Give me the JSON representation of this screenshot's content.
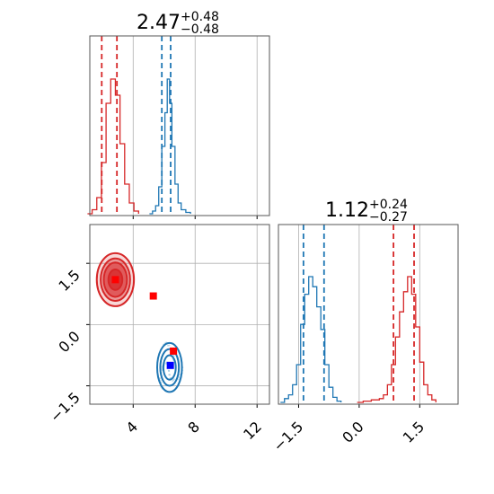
{
  "chart_data": [
    {
      "panel": "top-left",
      "type": "histogram",
      "title": {
        "value": "2.47",
        "plus": "+0.48",
        "minus": "−0.48"
      },
      "xlim": [
        1.2,
        12.8
      ],
      "xticks": [
        4,
        8,
        12
      ],
      "grid": true,
      "series": [
        {
          "color": "#d62728",
          "bins": [
            [
              1.05,
              0
            ],
            [
              1.35,
              3
            ],
            [
              1.65,
              12
            ],
            [
              1.95,
              38
            ],
            [
              2.25,
              82
            ],
            [
              2.55,
              100
            ],
            [
              2.85,
              88
            ],
            [
              3.15,
              52
            ],
            [
              3.45,
              22
            ],
            [
              3.75,
              8
            ],
            [
              4.05,
              2
            ],
            [
              4.35,
              0
            ]
          ],
          "quantile_lines": [
            1.97,
            2.95
          ]
        },
        {
          "color": "#1f77b4",
          "bins": [
            [
              5.05,
              0
            ],
            [
              5.25,
              2
            ],
            [
              5.45,
              6
            ],
            [
              5.65,
              20
            ],
            [
              5.85,
              50
            ],
            [
              6.05,
              75
            ],
            [
              6.2,
              100
            ],
            [
              6.35,
              82
            ],
            [
              6.5,
              50
            ],
            [
              6.7,
              22
            ],
            [
              6.9,
              8
            ],
            [
              7.1,
              3
            ],
            [
              7.4,
              1
            ],
            [
              7.7,
              0
            ]
          ],
          "quantile_lines": [
            5.85,
            6.42
          ]
        }
      ]
    },
    {
      "panel": "bottom-left",
      "type": "scatter",
      "xlim": [
        1.2,
        12.8
      ],
      "ylim": [
        -1.95,
        2.45
      ],
      "xticks": [
        "4",
        "8",
        "12"
      ],
      "yticks": [
        "1.5",
        "0.0",
        "−1.5"
      ],
      "ytick_values": [
        1.5,
        0.0,
        -1.5
      ],
      "grid": true,
      "markers": [
        {
          "x": 2.85,
          "y": 1.1,
          "color": "#ff0000"
        },
        {
          "x": 5.3,
          "y": 0.7,
          "color": "#ff0000"
        },
        {
          "x": 6.6,
          "y": -0.65,
          "color": "#ff0000"
        },
        {
          "x": 6.4,
          "y": -1.0,
          "color": "#0000ff"
        }
      ],
      "contours": [
        {
          "color": "#d62728",
          "cx": 2.85,
          "cy": 1.1,
          "rx": [
            1.2,
            0.95,
            0.75,
            0.45
          ],
          "ry": [
            0.65,
            0.52,
            0.42,
            0.25
          ],
          "filled": true
        },
        {
          "color": "#1f77b4",
          "cx": 6.35,
          "cy": -1.05,
          "rx": [
            0.8,
            0.6,
            0.4
          ],
          "ry": [
            0.6,
            0.45,
            0.3
          ],
          "filled": false
        }
      ]
    },
    {
      "panel": "bottom-right",
      "type": "histogram",
      "title": {
        "value": "1.12",
        "plus": "+0.24",
        "minus": "−0.27"
      },
      "xlim": [
        -2.0,
        2.45
      ],
      "xticks": [
        "−1.5",
        "0.0",
        "1.5"
      ],
      "xtick_values": [
        -1.5,
        0.0,
        1.5
      ],
      "grid": true,
      "series": [
        {
          "color": "#1f77b4",
          "bins": [
            [
              -1.95,
              0
            ],
            [
              -1.85,
              3
            ],
            [
              -1.75,
              6
            ],
            [
              -1.65,
              14
            ],
            [
              -1.55,
              30
            ],
            [
              -1.45,
              62
            ],
            [
              -1.35,
              86
            ],
            [
              -1.25,
              100
            ],
            [
              -1.15,
              92
            ],
            [
              -1.05,
              76
            ],
            [
              -0.95,
              58
            ],
            [
              -0.85,
              30
            ],
            [
              -0.75,
              12
            ],
            [
              -0.65,
              4
            ],
            [
              -0.55,
              1
            ],
            [
              -0.45,
              0
            ]
          ],
          "quantile_lines": [
            -1.38,
            -0.87
          ]
        },
        {
          "color": "#d62728",
          "bins": [
            [
              -0.05,
              0
            ],
            [
              0.1,
              1
            ],
            [
              0.3,
              2
            ],
            [
              0.5,
              3
            ],
            [
              0.6,
              6
            ],
            [
              0.7,
              14
            ],
            [
              0.8,
              30
            ],
            [
              0.9,
              52
            ],
            [
              1.0,
              72
            ],
            [
              1.1,
              88
            ],
            [
              1.2,
              100
            ],
            [
              1.3,
              86
            ],
            [
              1.4,
              60
            ],
            [
              1.5,
              32
            ],
            [
              1.6,
              14
            ],
            [
              1.7,
              6
            ],
            [
              1.8,
              2
            ],
            [
              1.9,
              0
            ]
          ],
          "quantile_lines": [
            0.85,
            1.36
          ]
        }
      ]
    }
  ]
}
